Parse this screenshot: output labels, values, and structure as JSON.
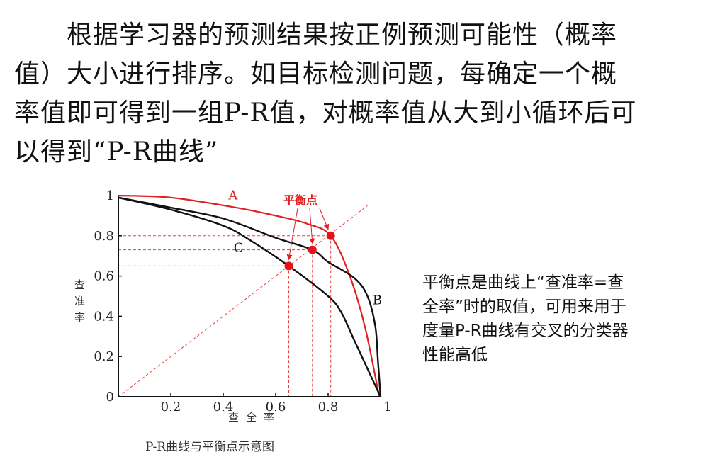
{
  "paragraph": {
    "lines": [
      "　　根据学习器的预测结果按正例预测可能性（概率",
      "值）大小进行排序。如目标检测问题，每确定一个概",
      "率值即可得到一组P-R值，对概率值从大到小循环后可",
      "以得到“P-R曲线”"
    ]
  },
  "note": {
    "lines": [
      "平衡点是曲线上“查准率=查",
      "全率”时的取值，可用来用于",
      "度量P-R曲线有交叉的分类器",
      "性能高低"
    ]
  },
  "chart_data": {
    "type": "line",
    "caption": "P-R曲线与平衡点示意图",
    "xlabel": "查全率",
    "ylabel": "查准率",
    "xlim": [
      0,
      1
    ],
    "ylim": [
      0,
      1
    ],
    "xticks": [
      "0.2",
      "0.4",
      "0.6",
      "0.8",
      "1"
    ],
    "yticks": [
      "0",
      "0.2",
      "0.4",
      "0.6",
      "0.8",
      "1"
    ],
    "annotation": "平衡点",
    "colors": {
      "A": "#e02020",
      "B": "#111111",
      "C": "#111111",
      "guide": "#e84040"
    },
    "series": [
      {
        "name": "A",
        "points": [
          [
            0,
            1
          ],
          [
            0.2,
            0.99
          ],
          [
            0.45,
            0.94
          ],
          [
            0.6,
            0.9
          ],
          [
            0.72,
            0.86
          ],
          [
            0.81,
            0.8
          ],
          [
            0.88,
            0.61
          ],
          [
            0.94,
            0.35
          ],
          [
            0.995,
            0
          ]
        ]
      },
      {
        "name": "B",
        "points": [
          [
            0,
            0.99
          ],
          [
            0.2,
            0.94
          ],
          [
            0.4,
            0.886
          ],
          [
            0.6,
            0.79
          ],
          [
            0.74,
            0.73
          ],
          [
            0.8,
            0.67
          ],
          [
            0.9,
            0.59
          ],
          [
            0.95,
            0.5
          ],
          [
            0.98,
            0.35
          ],
          [
            0.99,
            0.18
          ],
          [
            1,
            0
          ]
        ]
      },
      {
        "name": "C",
        "points": [
          [
            0,
            0.99
          ],
          [
            0.2,
            0.93
          ],
          [
            0.4,
            0.85
          ],
          [
            0.5,
            0.78
          ],
          [
            0.65,
            0.65
          ],
          [
            0.8,
            0.5
          ],
          [
            0.85,
            0.42
          ],
          [
            0.9,
            0.28
          ],
          [
            1,
            0
          ]
        ]
      }
    ],
    "break_even_points": [
      [
        0.65,
        0.65
      ],
      [
        0.74,
        0.73
      ],
      [
        0.81,
        0.8
      ]
    ],
    "diagonal": [
      [
        0,
        0
      ],
      [
        0.95,
        0.95
      ]
    ]
  }
}
